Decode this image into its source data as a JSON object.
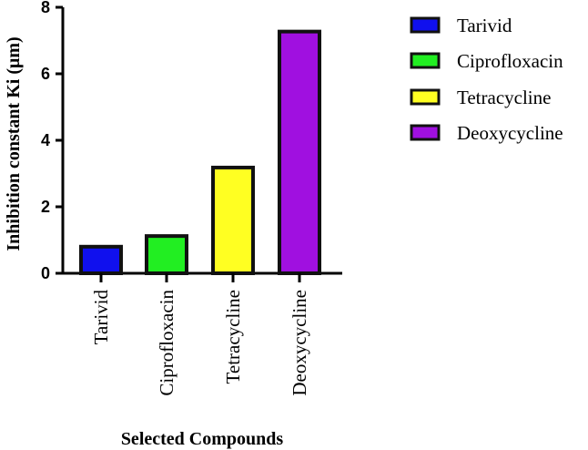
{
  "chart_data": {
    "type": "bar",
    "title": "",
    "xlabel": "Selected Compounds",
    "ylabel": "Inhibition constant  Ki (μm)",
    "categories": [
      "Tarivid",
      "Ciprofloxacin",
      "Tetracycline",
      "Deoxycycline"
    ],
    "values": [
      0.8,
      1.12,
      3.18,
      7.27
    ],
    "colors": [
      "#1010ee",
      "#22ee22",
      "#ffff22",
      "#a010e0"
    ],
    "ylim": [
      0,
      8
    ],
    "yticks": [
      "0",
      "2",
      "4",
      "6",
      "8"
    ],
    "grid": false,
    "legend": {
      "position": "right",
      "entries": [
        "Tarivid",
        "Ciprofloxacin",
        "Tetracycline",
        "Deoxycycline"
      ]
    }
  }
}
